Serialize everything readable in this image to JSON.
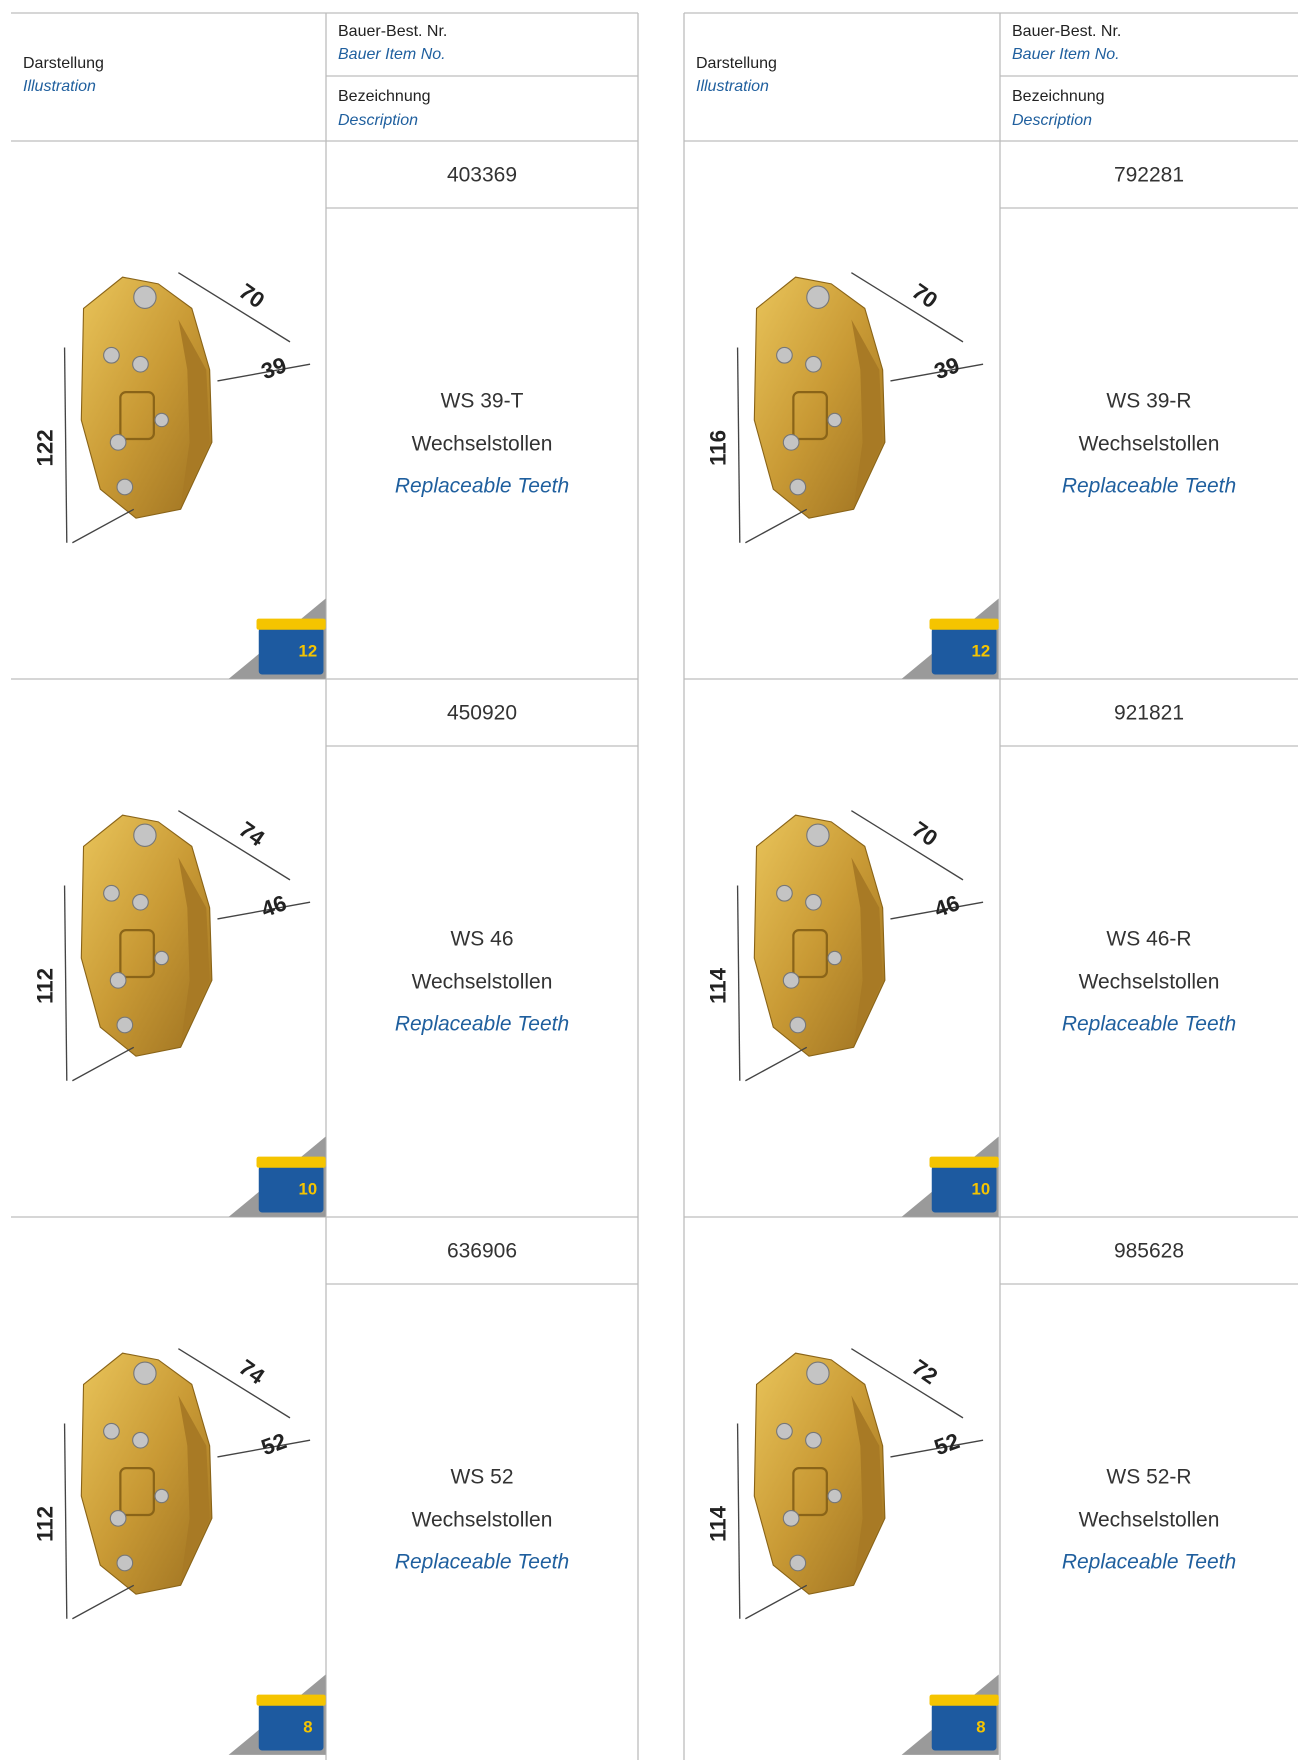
{
  "header": {
    "illustration": "Darstellung",
    "illustration_en": "Illustration",
    "item_no": "Bauer-Best. Nr.",
    "item_no_en": "Bauer Item No.",
    "description": "Bezeichnung",
    "description_en": "Description"
  },
  "products": [
    {
      "item_no": "403369",
      "model": "WS 39-T",
      "name_de": "Wechselstollen",
      "name_en": "Replaceable Teeth",
      "dimensions": {
        "length": "70",
        "width": "39",
        "height": "122"
      },
      "pack_quantity": "12"
    },
    {
      "item_no": "450920",
      "model": "WS 46",
      "name_de": "Wechselstollen",
      "name_en": "Replaceable Teeth",
      "dimensions": {
        "length": "74",
        "width": "46",
        "height": "112"
      },
      "pack_quantity": "10"
    },
    {
      "item_no": "636906",
      "model": "WS 52",
      "name_de": "Wechselstollen",
      "name_en": "Replaceable Teeth",
      "dimensions": {
        "length": "74",
        "width": "52",
        "height": "112"
      },
      "pack_quantity": "8"
    },
    {
      "item_no": "792281",
      "model": "WS 39-R",
      "name_de": "Wechselstollen",
      "name_en": "Replaceable Teeth",
      "dimensions": {
        "length": "70",
        "width": "39",
        "height": "116"
      },
      "pack_quantity": "12"
    },
    {
      "item_no": "921821",
      "model": "WS 46-R",
      "name_de": "Wechselstollen",
      "name_en": "Replaceable Teeth",
      "dimensions": {
        "length": "70",
        "width": "46",
        "height": "114"
      },
      "pack_quantity": "10"
    },
    {
      "item_no": "985628",
      "model": "WS 52-R",
      "name_de": "Wechselstollen",
      "name_en": "Replaceable Teeth",
      "dimensions": {
        "length": "72",
        "width": "52",
        "height": "114"
      },
      "pack_quantity": "8"
    }
  ]
}
